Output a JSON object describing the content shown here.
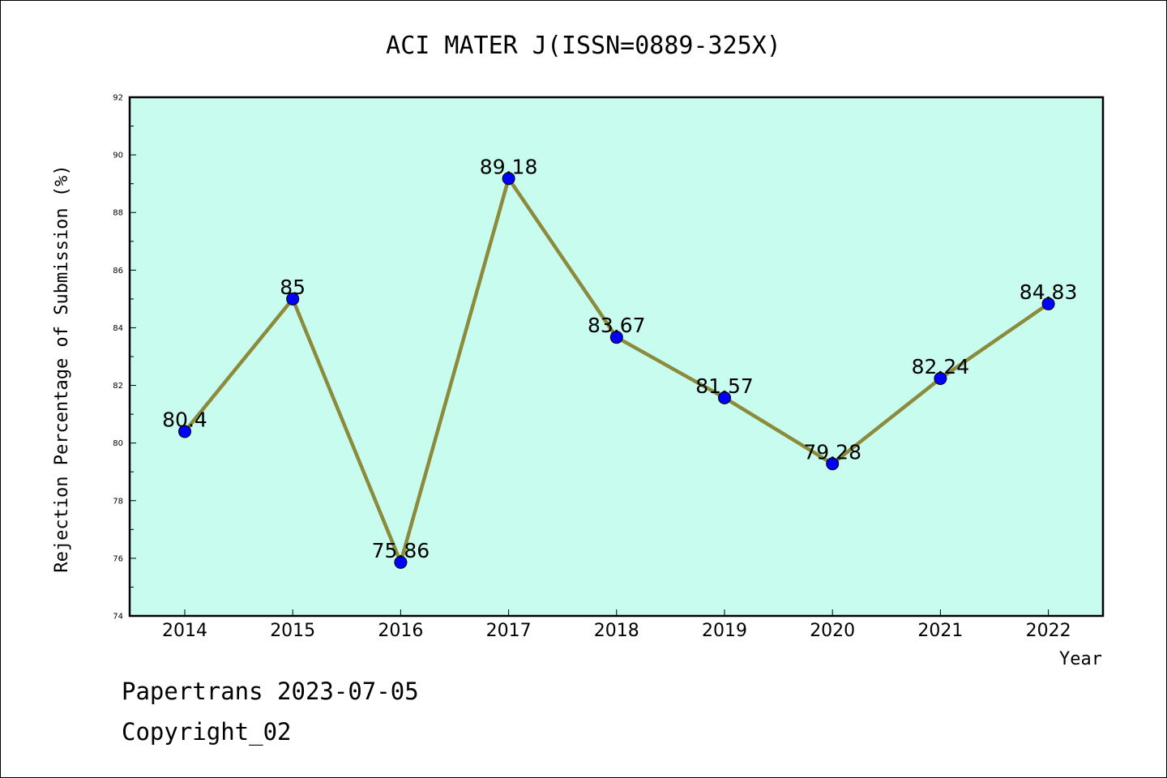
{
  "chart_data": {
    "type": "line",
    "title": "ACI MATER J(ISSN=0889-325X)",
    "xlabel": "Year",
    "ylabel": "Rejection Percentage of Submission (%)",
    "categories": [
      "2014",
      "2015",
      "2016",
      "2017",
      "2018",
      "2019",
      "2020",
      "2021",
      "2022"
    ],
    "values": [
      80.4,
      85,
      75.86,
      89.18,
      83.67,
      81.57,
      79.28,
      82.24,
      84.83
    ],
    "value_labels": [
      "80.4",
      "85",
      "75.86",
      "89.18",
      "83.67",
      "81.57",
      "79.28",
      "82.24",
      "84.83"
    ],
    "ylim": [
      74,
      92
    ],
    "yticks": [
      "74",
      "76",
      "78",
      "80",
      "82",
      "84",
      "86",
      "88",
      "90",
      "92"
    ],
    "grid": false,
    "colors": {
      "plot_background": "#c8fcee",
      "line": "#8b8b3b",
      "marker": "#0000ff"
    }
  },
  "footer": {
    "line1": "Papertrans 2023-07-05",
    "line2": "Copyright_02"
  }
}
